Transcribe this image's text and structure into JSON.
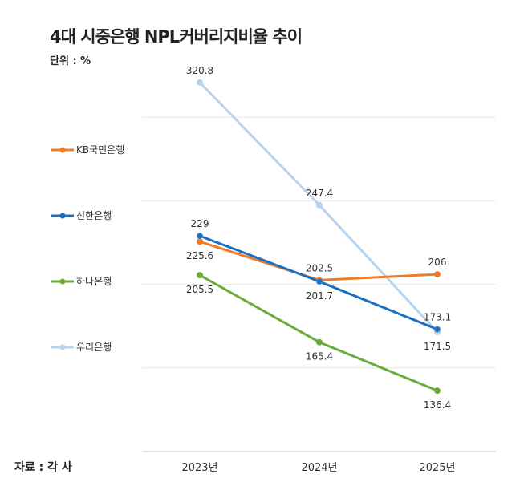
{
  "chart_data": {
    "type": "line",
    "title": "4대 시중은행 NPL커버리지비율 추이",
    "unit_label": "단위 : %",
    "source": "자료 : 각 사",
    "categories": [
      "2023년",
      "2024년",
      "2025년"
    ],
    "ylim": [
      100,
      330
    ],
    "grid": true,
    "grid_values": [
      100,
      150,
      200,
      250,
      300
    ],
    "legend_placement": "left",
    "series": [
      {
        "name": "KB국민은행",
        "color": "#f07c2a",
        "values": [
          225.6,
          202.5,
          206
        ],
        "labels": [
          "225.6",
          "202.5",
          "206"
        ]
      },
      {
        "name": "신한은행",
        "color": "#1a6fc0",
        "values": [
          229,
          201.7,
          173.1
        ],
        "labels": [
          "229",
          "201.7",
          "173.1"
        ]
      },
      {
        "name": "하나은행",
        "color": "#6aab3a",
        "values": [
          205.5,
          165.4,
          136.4
        ],
        "labels": [
          "205.5",
          "165.4",
          "136.4"
        ]
      },
      {
        "name": "우리은행",
        "color": "#b8d3ee",
        "values": [
          320.8,
          247.4,
          171.5
        ],
        "labels": [
          "320.8",
          "247.4",
          "171.5"
        ]
      }
    ]
  }
}
